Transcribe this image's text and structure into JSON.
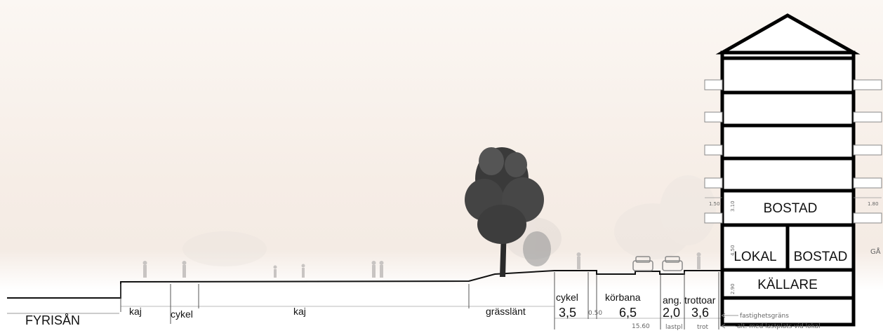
{
  "water": {
    "name": "FYRISÅN"
  },
  "zones": {
    "kaj_left": "kaj",
    "cykel_left": "cykel",
    "kaj_main": "kaj",
    "grasslant": "grässlänt",
    "cykel_right": "cykel",
    "korbana": "körbana",
    "ang": "ang.",
    "trottoar": "trottoar"
  },
  "dimensions": {
    "cykel": "3,5",
    "separator": "0.50",
    "korbana": "6,5",
    "ang": "2,0",
    "trottoar": "3,6",
    "total": "15.60",
    "lastpl": "lastpl",
    "trot": "trot",
    "balcony_left": "1.50",
    "balcony_right": "1.80",
    "floor_height": "3.10",
    "ground_floor_height": "4.50",
    "basement_height": "2.90"
  },
  "notes": {
    "property_line": "fastighetsgräns",
    "alt_loading": "alt. med lastplats vid lokal"
  },
  "building": {
    "bostad_top": "BOSTAD",
    "lokal": "LOKAL",
    "bostad_bottom": "BOSTAD",
    "kallare": "KÄLLARE",
    "cut_label": "GÅ"
  },
  "colors": {
    "sky": "#f6ede6",
    "line": "#111111",
    "building_stroke": "#000000"
  }
}
